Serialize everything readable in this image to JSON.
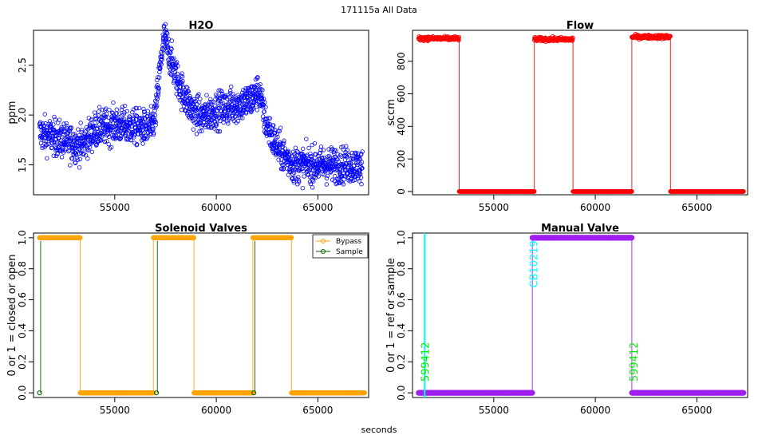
{
  "figure": {
    "super_title": "171115a   All Data",
    "shared_xlabel": "seconds"
  },
  "colors": {
    "h2o": "#0000ff",
    "flow": "#ff0000",
    "bypass": "#ffa500",
    "sample": "#006400",
    "manual": "#a020f0",
    "cyan": "#00ffff",
    "label_green": "#00ee00"
  },
  "chart_data": [
    {
      "id": "h2o",
      "type": "scatter",
      "title": "H2O",
      "xlabel": "",
      "ylabel": "ppm",
      "xlim": [
        51000,
        67500
      ],
      "ylim": [
        1.2,
        2.85
      ],
      "xticks": [
        55000,
        60000,
        65000
      ],
      "yticks": [
        1.5,
        2.0,
        2.5
      ],
      "ytick_labels": [
        "1.5",
        "2.0",
        "2.5"
      ],
      "series": [
        {
          "trend_x": [
            51300,
            52000,
            52800,
            53400,
            54000,
            55000,
            56000,
            56800,
            57000,
            57150,
            57300,
            57450,
            57700,
            58000,
            58400,
            58800,
            59300,
            60000,
            61000,
            61700,
            62100,
            62400,
            62800,
            63300,
            63800,
            64500,
            65500,
            66500,
            67200
          ],
          "trend_y": [
            1.82,
            1.78,
            1.72,
            1.7,
            1.85,
            1.9,
            1.88,
            1.87,
            2.0,
            2.3,
            2.6,
            2.78,
            2.6,
            2.4,
            2.2,
            2.05,
            1.98,
            2.05,
            2.1,
            2.15,
            2.25,
            1.95,
            1.75,
            1.6,
            1.5,
            1.5,
            1.5,
            1.5,
            1.48
          ],
          "noise": 0.09
        }
      ]
    },
    {
      "id": "flow",
      "type": "line",
      "title": "Flow",
      "xlabel": "",
      "ylabel": "sccm",
      "xlim": [
        51000,
        67500
      ],
      "ylim": [
        -20,
        990
      ],
      "xticks": [
        55000,
        60000,
        65000
      ],
      "yticks": [
        0,
        200,
        400,
        600,
        800
      ],
      "ytick_labels": [
        "0",
        "200",
        "400",
        "600",
        "800"
      ],
      "series": [
        {
          "segments": [
            {
              "x": [
                51300,
                53300
              ],
              "level": 940
            },
            {
              "x": [
                53300,
                57000
              ],
              "level": 0
            },
            {
              "x": [
                57000,
                58900
              ],
              "level": 935
            },
            {
              "x": [
                58900,
                61800
              ],
              "level": 0
            },
            {
              "x": [
                61800,
                63700
              ],
              "level": 950
            },
            {
              "x": [
                63700,
                67300
              ],
              "level": 0
            }
          ]
        }
      ]
    },
    {
      "id": "solenoid",
      "type": "line",
      "title": "Solenoid Valves",
      "xlabel": "",
      "ylabel": "0 or 1 = closed or open",
      "xlim": [
        51000,
        67500
      ],
      "ylim": [
        -0.03,
        1.03
      ],
      "xticks": [
        55000,
        60000,
        65000
      ],
      "yticks": [
        0.0,
        0.2,
        0.4,
        0.6,
        0.8,
        1.0
      ],
      "ytick_labels": [
        "0.0",
        "0.2",
        "0.4",
        "0.6",
        "0.8",
        "1.0"
      ],
      "legend": {
        "position": "top-right",
        "entries": [
          "Bypass",
          "Sample"
        ]
      },
      "series": [
        {
          "name": "Bypass",
          "segments": [
            {
              "x": [
                51300,
                53300
              ],
              "level": 1
            },
            {
              "x": [
                53300,
                56900
              ],
              "level": 0
            },
            {
              "x": [
                56900,
                58900
              ],
              "level": 1
            },
            {
              "x": [
                58900,
                61800
              ],
              "level": 0
            },
            {
              "x": [
                61800,
                63700
              ],
              "level": 1
            },
            {
              "x": [
                63700,
                67300
              ],
              "level": 0
            }
          ]
        },
        {
          "name": "Sample",
          "points": [
            [
              51300,
              0
            ],
            [
              57050,
              0
            ],
            [
              61850,
              0
            ]
          ]
        }
      ]
    },
    {
      "id": "manual",
      "type": "line",
      "title": "Manual Valve",
      "xlabel": "",
      "ylabel": "0 or 1 = ref or sample",
      "xlim": [
        51000,
        67500
      ],
      "ylim": [
        -0.03,
        1.03
      ],
      "xticks": [
        55000,
        60000,
        65000
      ],
      "yticks": [
        0.0,
        0.2,
        0.4,
        0.6,
        0.8,
        1.0
      ],
      "ytick_labels": [
        "0.0",
        "0.2",
        "0.4",
        "0.6",
        "0.8",
        "1.0"
      ],
      "series": [
        {
          "segments": [
            {
              "x": [
                51300,
                56900
              ],
              "level": 0
            },
            {
              "x": [
                56900,
                61800
              ],
              "level": 1
            },
            {
              "x": [
                61800,
                67300
              ],
              "level": 0
            }
          ]
        }
      ],
      "vline_x": 51600,
      "annotations": [
        {
          "text": "599412",
          "x": 51600,
          "y": 0.2
        },
        {
          "text": "CB10219",
          "x": 56950,
          "y": 0.83
        },
        {
          "text": "599412",
          "x": 61880,
          "y": 0.2
        }
      ]
    }
  ]
}
